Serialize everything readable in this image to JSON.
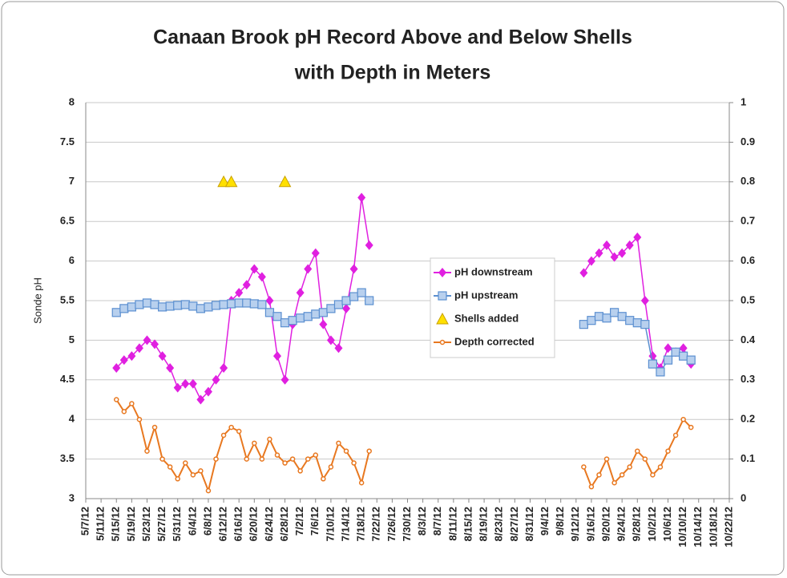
{
  "chart_data": {
    "type": "line",
    "title": "Canaan Brook pH Record  Above and Below Shells",
    "subtitle": "with Depth in Meters",
    "y_label": "Sonde pH",
    "xlim": [
      "5/7/12",
      "10/22/12"
    ],
    "xticks": [
      "5/7/12",
      "5/11/12",
      "5/15/12",
      "5/19/12",
      "5/23/12",
      "5/27/12",
      "5/31/12",
      "6/4/12",
      "6/8/12",
      "6/12/12",
      "6/16/12",
      "6/20/12",
      "6/24/12",
      "6/28/12",
      "7/2/12",
      "7/6/12",
      "7/10/12",
      "7/14/12",
      "7/18/12",
      "7/22/12",
      "7/26/12",
      "7/30/12",
      "8/3/12",
      "8/7/12",
      "8/11/12",
      "8/15/12",
      "8/19/12",
      "8/23/12",
      "8/27/12",
      "8/31/12",
      "9/4/12",
      "9/8/12",
      "9/12/12",
      "9/16/12",
      "9/20/12",
      "9/24/12",
      "9/28/12",
      "10/2/12",
      "10/6/12",
      "10/10/12",
      "10/14/12",
      "10/18/12",
      "10/22/12"
    ],
    "ylim": [
      3,
      8
    ],
    "yticks": [
      3,
      3.5,
      4,
      4.5,
      5,
      5.5,
      6,
      6.5,
      7,
      7.5,
      8
    ],
    "y2lim": [
      0,
      1
    ],
    "y2ticks": [
      0,
      0.1,
      0.2,
      0.3,
      0.4,
      0.5,
      0.6,
      0.7,
      0.8,
      0.9,
      1
    ],
    "grid": true,
    "legend": "center-right",
    "x": [
      "5/15/12",
      "5/17/12",
      "5/19/12",
      "5/21/12",
      "5/23/12",
      "5/25/12",
      "5/27/12",
      "5/29/12",
      "5/31/12",
      "6/2/12",
      "6/4/12",
      "6/6/12",
      "6/8/12",
      "6/10/12",
      "6/12/12",
      "6/14/12",
      "6/16/12",
      "6/18/12",
      "6/20/12",
      "6/22/12",
      "6/24/12",
      "6/26/12",
      "6/28/12",
      "6/30/12",
      "7/2/12",
      "7/4/12",
      "7/6/12",
      "7/8/12",
      "7/10/12",
      "7/12/12",
      "7/14/12",
      "7/16/12",
      "7/18/12",
      "7/20/12",
      "8/15/12",
      "9/14/12",
      "9/16/12",
      "9/18/12",
      "9/20/12",
      "9/22/12",
      "9/24/12",
      "9/26/12",
      "9/28/12",
      "9/30/12",
      "10/2/12",
      "10/4/12",
      "10/6/12",
      "10/8/12",
      "10/10/12",
      "10/12/12"
    ],
    "series": [
      {
        "name": "pH downstream",
        "color": "#e020e0",
        "marker": "diamond",
        "line": true,
        "values": [
          4.65,
          4.75,
          4.8,
          4.9,
          5.0,
          4.95,
          4.8,
          4.65,
          4.4,
          4.45,
          4.45,
          4.25,
          4.35,
          4.5,
          4.65,
          5.5,
          5.6,
          5.7,
          5.9,
          5.8,
          5.5,
          4.8,
          4.5,
          5.2,
          5.6,
          5.9,
          6.1,
          5.2,
          5.0,
          4.9,
          5.4,
          5.9,
          6.8,
          6.2,
          null,
          5.85,
          6.0,
          6.1,
          6.2,
          6.05,
          6.1,
          6.2,
          6.3,
          5.5,
          4.8,
          4.65,
          4.9,
          4.85,
          4.9,
          4.7
        ]
      },
      {
        "name": "pH upstream",
        "color": "#5b8fd0",
        "marker": "square",
        "line": true,
        "values": [
          5.35,
          5.4,
          5.42,
          5.45,
          5.47,
          5.45,
          5.42,
          5.43,
          5.44,
          5.45,
          5.43,
          5.4,
          5.42,
          5.44,
          5.45,
          5.46,
          5.47,
          5.47,
          5.46,
          5.45,
          5.35,
          5.3,
          5.22,
          5.25,
          5.28,
          5.3,
          5.33,
          5.35,
          5.4,
          5.45,
          5.5,
          5.55,
          5.6,
          5.5,
          null,
          5.2,
          5.25,
          5.3,
          5.28,
          5.35,
          5.3,
          5.25,
          5.22,
          5.2,
          4.7,
          4.6,
          4.75,
          4.85,
          4.8,
          4.75
        ]
      },
      {
        "name": "Shells added",
        "color": "#ffe000",
        "marker": "triangle",
        "line": false,
        "x": [
          "6/12/12",
          "6/14/12",
          "6/28/12"
        ],
        "values": [
          7,
          7,
          7
        ]
      },
      {
        "name": "Depth corrected",
        "color": "#e87820",
        "marker": "circle",
        "line": true,
        "axis": "y2",
        "values": [
          0.25,
          0.22,
          0.24,
          0.2,
          0.12,
          0.18,
          0.1,
          0.08,
          0.05,
          0.09,
          0.06,
          0.07,
          0.02,
          0.1,
          0.16,
          0.18,
          0.17,
          0.1,
          0.14,
          0.1,
          0.15,
          0.11,
          0.09,
          0.1,
          0.07,
          0.1,
          0.11,
          0.05,
          0.08,
          0.14,
          0.12,
          0.09,
          0.04,
          0.12,
          null,
          0.08,
          0.03,
          0.06,
          0.1,
          0.04,
          0.06,
          0.08,
          0.12,
          0.1,
          0.06,
          0.08,
          0.12,
          0.16,
          0.2,
          0.18
        ]
      }
    ]
  }
}
